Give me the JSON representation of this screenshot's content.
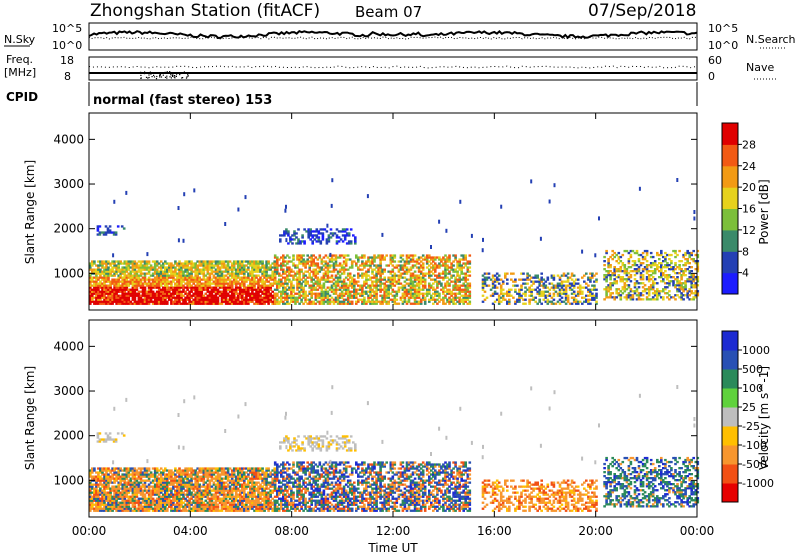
{
  "header": {
    "station": "Zhongshan Station (fitACF)",
    "beam": "Beam 07",
    "date": "07/Sep/2018"
  },
  "noise_panel": {
    "left_label": "N.Sky",
    "left_ticks": [
      "10^5",
      "10^0"
    ],
    "right_label": "N.Search",
    "right_ticks": [
      "10^5",
      "10^0"
    ]
  },
  "freq_panel": {
    "label_line1": "Freq.",
    "label_line2": "[MHz]",
    "left_ticks": [
      "18",
      "8"
    ],
    "right_label": "Nave",
    "right_ticks": [
      "60",
      "0"
    ]
  },
  "cpid": {
    "label": "CPID",
    "text": "normal (fast stereo) 153"
  },
  "chart_data": [
    {
      "type": "heatmap",
      "quantity": "Power",
      "ylabel": "Slant Range [km]",
      "ylim": [
        180,
        4590
      ],
      "y_ticks": [
        "1000",
        "2000",
        "3000",
        "4000"
      ],
      "xlim": [
        0,
        24
      ],
      "x_ticks": [
        "00:00",
        "04:00",
        "08:00",
        "12:00",
        "16:00",
        "20:00",
        "00:00"
      ],
      "xlabel": "Time UT",
      "colorbar": {
        "label": "Power [dB]",
        "tick_labels": [
          "4",
          "8",
          "12",
          "16",
          "20",
          "24",
          "28"
        ],
        "colors": [
          "#1c1cff",
          "#2440b4",
          "#3a8a6a",
          "#7cbf3a",
          "#e6d21c",
          "#f29a14",
          "#f25a14",
          "#e00000"
        ]
      },
      "echo_regions": [
        {
          "t_start": 0.0,
          "t_end": 7.3,
          "r_start": 300,
          "r_end": 1250,
          "level": "20-28 dB"
        },
        {
          "t_start": 0.3,
          "t_end": 1.4,
          "r_start": 1850,
          "r_end": 2050,
          "level": "4-12 dB"
        },
        {
          "t_start": 7.5,
          "t_end": 10.5,
          "r_start": 1650,
          "r_end": 2000,
          "level": "4-12 dB"
        },
        {
          "t_start": 7.3,
          "t_end": 15.0,
          "r_start": 300,
          "r_end": 1400,
          "level": "12-28 dB"
        },
        {
          "t_start": 15.5,
          "t_end": 20.0,
          "r_start": 300,
          "r_end": 1000,
          "level": "8-24 dB"
        },
        {
          "t_start": 20.3,
          "t_end": 24.0,
          "r_start": 400,
          "r_end": 1500,
          "level": "8-24 dB"
        }
      ]
    },
    {
      "type": "heatmap",
      "quantity": "Velocity",
      "ylabel": "Slant Range [km]",
      "ylim": [
        180,
        4590
      ],
      "y_ticks": [
        "1000",
        "2000",
        "3000",
        "4000"
      ],
      "xlim": [
        0,
        24
      ],
      "x_ticks": [
        "00:00",
        "04:00",
        "08:00",
        "12:00",
        "16:00",
        "20:00",
        "00:00"
      ],
      "xlabel": "Time UT",
      "colorbar": {
        "label": "Velocity [m s^-1]",
        "tick_labels": [
          "-1000",
          "-500",
          "-100",
          "-25",
          "25",
          "100",
          "500",
          "1000"
        ],
        "colors": [
          "#e60000",
          "#f25014",
          "#f7962e",
          "#ffbf00",
          "#bebebe",
          "#5fd23c",
          "#2a8a5a",
          "#2850b4",
          "#1c2ad2"
        ]
      },
      "echo_regions": [
        {
          "t_start": 0.0,
          "t_end": 7.3,
          "r_start": 300,
          "r_end": 1250,
          "level": "-500 to -100 m/s, mixed"
        },
        {
          "t_start": 0.3,
          "t_end": 1.4,
          "r_start": 1850,
          "r_end": 2050,
          "level": "-25 to 25 m/s"
        },
        {
          "t_start": 7.5,
          "t_end": 10.5,
          "r_start": 1650,
          "r_end": 2000,
          "level": "-25 to 25 m/s"
        },
        {
          "t_start": 7.3,
          "t_end": 15.0,
          "r_start": 300,
          "r_end": 1400,
          "level": "mixed, 500-1000 m/s patches"
        },
        {
          "t_start": 15.5,
          "t_end": 20.0,
          "r_start": 300,
          "r_end": 1000,
          "level": "-500 to -100 m/s"
        },
        {
          "t_start": 20.3,
          "t_end": 24.0,
          "r_start": 400,
          "r_end": 1500,
          "level": "100 to 1000 m/s"
        }
      ]
    }
  ]
}
